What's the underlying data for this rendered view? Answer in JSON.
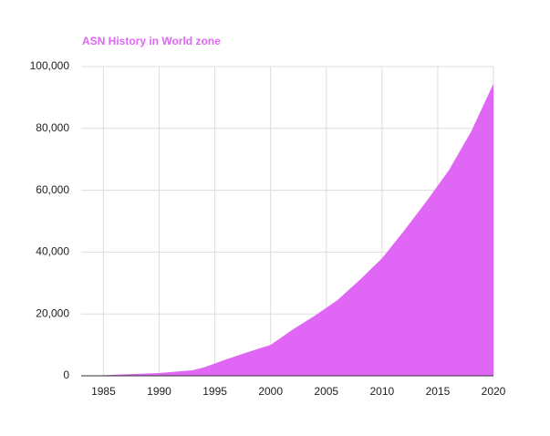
{
  "chart_data": {
    "type": "area",
    "title": "ASN History in World zone",
    "x": [
      1983,
      1985,
      1990,
      1993,
      1994,
      1995,
      1996,
      1998,
      2000,
      2002,
      2004,
      2006,
      2008,
      2010,
      2012,
      2014,
      2016,
      2018,
      2020
    ],
    "values": [
      0,
      200,
      900,
      1800,
      2700,
      4000,
      5300,
      7700,
      10000,
      15000,
      19500,
      24500,
      31000,
      38000,
      47000,
      56500,
      66500,
      79000,
      94500
    ],
    "color": "#e066f5",
    "xlim": [
      1983,
      2020
    ],
    "xticks": [
      1985,
      1990,
      1995,
      2000,
      2005,
      2010,
      2015,
      2020
    ],
    "ylim": [
      0,
      100000
    ],
    "yticks": [
      0,
      {
        "value": 20000,
        "label": "20,000"
      },
      {
        "value": 40000,
        "label": "40,000"
      },
      {
        "value": 60000,
        "label": "60,000"
      },
      {
        "value": 80000,
        "label": "80,000"
      },
      {
        "value": 100000,
        "label": "100,000"
      }
    ],
    "grid": true
  }
}
